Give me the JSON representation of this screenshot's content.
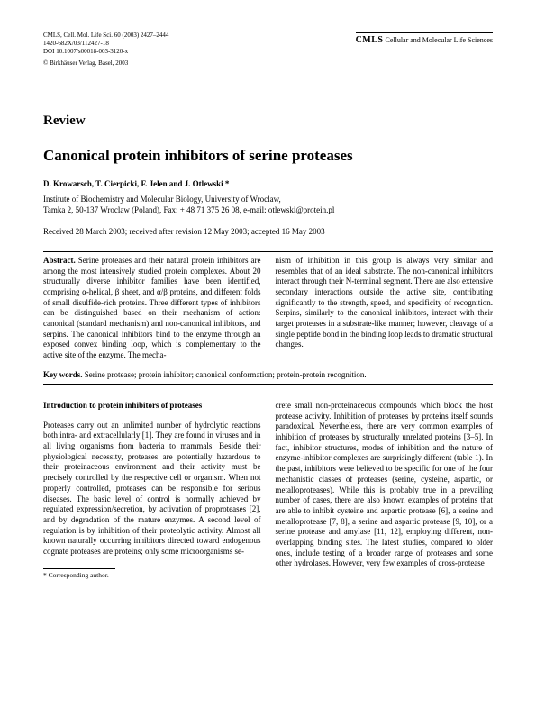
{
  "header": {
    "citation_line1": "CMLS, Cell. Mol. Life Sci. 60 (2003) 2427–2444",
    "citation_line2": "1420-682X/03/112427-18",
    "citation_line3": "DOI 10.1007/s00018-003-3120-x",
    "publisher": "© Birkhäuser Verlag, Basel, 2003",
    "journal_abbrev": "CMLS",
    "journal_full": "Cellular and Molecular Life Sciences"
  },
  "article": {
    "type": "Review",
    "title": "Canonical protein inhibitors of serine proteases",
    "authors": "D. Krowarsch, T. Cierpicki, F. Jelen and J. Otlewski *",
    "affiliation_line1": "Institute of Biochemistry and Molecular Biology, University of Wroclaw,",
    "affiliation_line2": "Tamka 2, 50-137 Wroclaw (Poland), Fax: + 48 71 375 26 08, e-mail: otlewski@protein.pl",
    "dates": "Received 28 March 2003; received after revision 12 May 2003; accepted 16 May 2003"
  },
  "abstract": {
    "label": "Abstract.",
    "col1": "Serine proteases and their natural protein inhibitors are among the most intensively studied protein complexes. About 20 structurally diverse inhibitor families have been identified, comprising α-helical, β sheet, and α/β proteins, and different folds of small disulfide-rich proteins. Three different types of inhibitors can be distinguished based on their mechanism of action: canonical (standard mechanism) and non-canonical inhibitors, and serpins. The canonical inhibitors bind to the enzyme through an exposed convex binding loop, which is complementary to the active site of the enzyme. The mecha-",
    "col2": "nism of inhibition in this group is always very similar and resembles that of an ideal substrate. The non-canonical inhibitors interact through their N-terminal segment. There are also extensive secondary interactions outside the active site, contributing significantly to the strength, speed, and specificity of recognition. Serpins, similarly to the canonical inhibitors, interact with their target proteases in a substrate-like manner; however, cleavage of a single peptide bond in the binding loop leads to dramatic structural changes."
  },
  "keywords": {
    "label": "Key words.",
    "text": "Serine protease; protein inhibitor; canonical conformation; protein-protein recognition."
  },
  "body": {
    "heading": "Introduction to protein inhibitors of proteases",
    "col1": "Proteases carry out an unlimited number of hydrolytic reactions both intra- and extracellularly [1]. They are found in viruses and in all living organisms from bacteria to mammals. Beside their physiological necessity, proteases are potentially hazardous to their proteinaceous environment and their activity must be precisely controlled by the respective cell or organism. When not properly controlled, proteases can be responsible for serious diseases. The basic level of control is normally achieved by regulated expression/secretion, by activation of proproteases [2], and by degradation of the mature enzymes. A second level of regulation is by inhibition of their proteolytic activity. Almost all known naturally occurring inhibitors directed toward endogenous cognate proteases are proteins; only some microorganisms se-",
    "col2": "crete small non-proteinaceous compounds which block the host protease activity.\nInhibition of proteases by proteins itself sounds paradoxical. Nevertheless, there are very common examples of inhibition of proteases by structurally unrelated proteins [3–5]. In fact, inhibitor structures, modes of inhibition and the nature of enzyme-inhibitor complexes are surprisingly different (table 1). In the past, inhibitors were believed to be specific for one of the four mechanistic classes of proteases (serine, cysteine, aspartic, or metalloproteases). While this is probably true in a prevailing number of cases, there are also known examples of proteins that are able to inhibit cysteine and aspartic protease [6], a serine and metalloprotease [7, 8], a serine and aspartic protease [9, 10], or a serine protease and amylase [11, 12], employing different, non-overlapping binding sites. The latest studies, compared to older ones, include testing of a broader range of proteases and some other hydrolases. However, very few examples of cross-protease"
  },
  "footnote": {
    "text": "* Corresponding author."
  }
}
